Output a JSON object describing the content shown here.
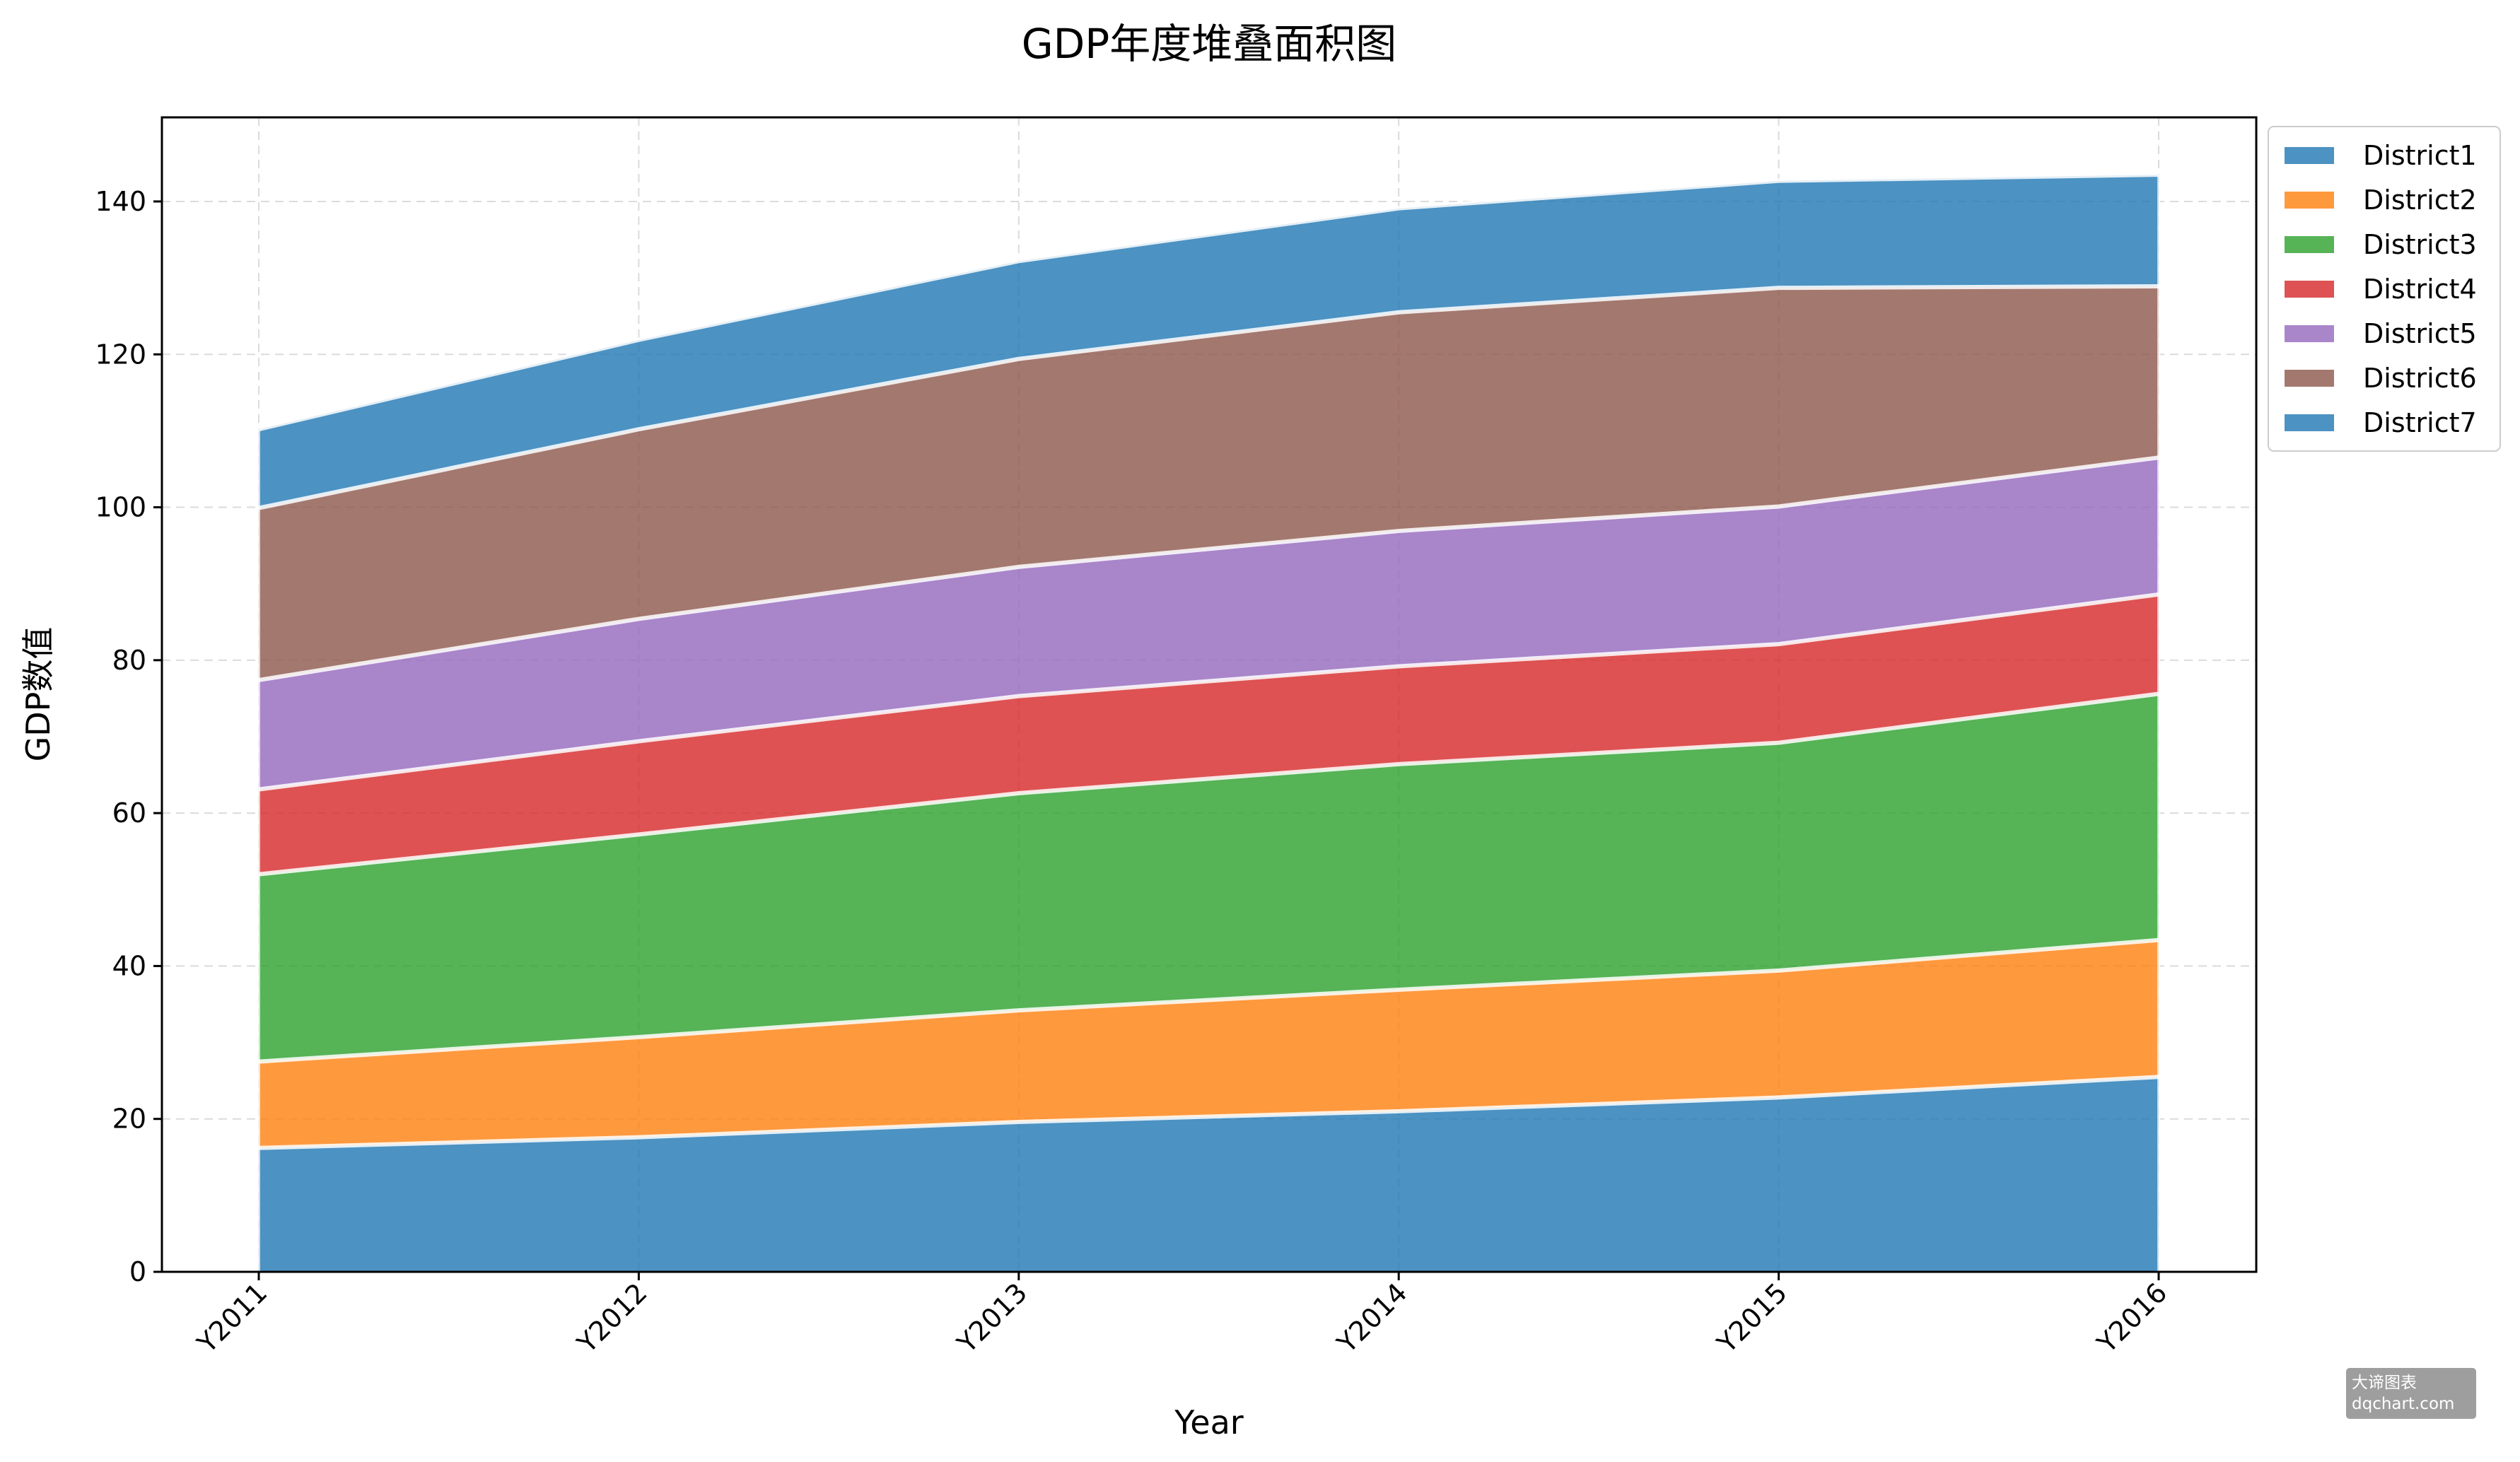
{
  "chart_data": {
    "type": "area",
    "stacked": true,
    "title": "GDP年度堆叠面积图",
    "xlabel": "Year",
    "ylabel": "GDP数值",
    "categories": [
      "Y2011",
      "Y2012",
      "Y2013",
      "Y2014",
      "Y2015",
      "Y2016"
    ],
    "ylim": [
      0,
      151
    ],
    "yticks": [
      0,
      20,
      40,
      60,
      80,
      100,
      120,
      140
    ],
    "grid": true,
    "legend_position": "outside-top-right",
    "series": [
      {
        "name": "District1",
        "color": "#1f77b4",
        "values": [
          16.2,
          17.6,
          19.6,
          21.0,
          22.8,
          25.5
        ]
      },
      {
        "name": "District2",
        "color": "#ff7f0e",
        "values": [
          11.3,
          13.1,
          14.6,
          15.9,
          16.6,
          17.9
        ]
      },
      {
        "name": "District3",
        "color": "#2ca02c",
        "values": [
          24.5,
          26.5,
          28.4,
          29.5,
          29.8,
          32.2
        ]
      },
      {
        "name": "District4",
        "color": "#d62728",
        "values": [
          11.1,
          12.2,
          12.7,
          12.8,
          12.9,
          13.0
        ]
      },
      {
        "name": "District5",
        "color": "#9467bd",
        "values": [
          14.3,
          16.0,
          16.9,
          17.7,
          18.0,
          17.9
        ]
      },
      {
        "name": "District6",
        "color": "#8c564b",
        "values": [
          22.5,
          24.8,
          27.2,
          28.6,
          28.6,
          22.4
        ]
      },
      {
        "name": "District7",
        "color": "#1f77b4",
        "values": [
          10.3,
          11.7,
          12.8,
          13.6,
          14.0,
          14.6
        ]
      }
    ]
  },
  "watermark": {
    "line1": "大谛图表",
    "line2": "dqchart.com"
  }
}
